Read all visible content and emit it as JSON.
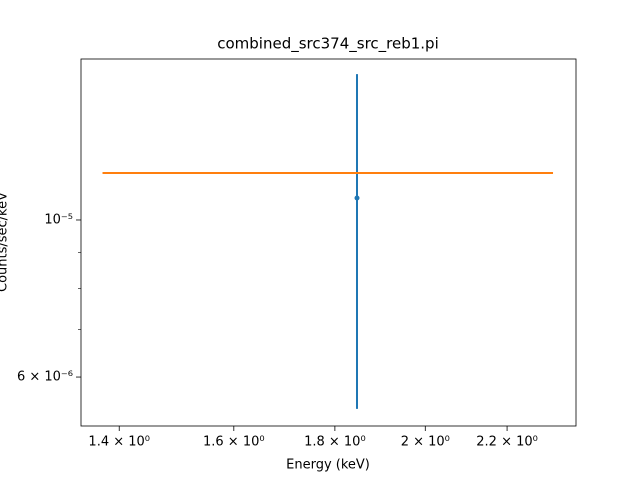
{
  "chart_data": {
    "type": "errorbar",
    "title": "combined_src374_src_reb1.pi",
    "xlabel": "Energy (keV)",
    "ylabel": "Counts/sec/keV",
    "xscale": "log",
    "yscale": "log",
    "xlim": [
      1.339,
      2.384
    ],
    "ylim": [
      5.117e-06,
      1.688e-05
    ],
    "xticks": [
      {
        "value": 1.4,
        "label": "1.4 × 10⁰"
      },
      {
        "value": 1.6,
        "label": "1.6 × 10⁰"
      },
      {
        "value": 1.8,
        "label": "1.8 × 10⁰"
      },
      {
        "value": 2.0,
        "label": "2 × 10⁰"
      },
      {
        "value": 2.2,
        "label": "2.2 × 10⁰"
      }
    ],
    "yticks": [
      {
        "value": 1e-05,
        "label": "10⁻⁵"
      },
      {
        "value": 6e-06,
        "label": "6 × 10⁻⁶"
      }
    ],
    "yminor_ticks": [
      7e-06,
      8e-06,
      9e-06
    ],
    "series": [
      {
        "style": "errorbar",
        "color": "#1f77b4",
        "x": [
          1.847
        ],
        "values": [
          1.074e-05
        ],
        "yerr": [
          5.33e-06
        ]
      },
      {
        "style": "line",
        "color": "#ff7f0e",
        "x": [
          1.373,
          2.321
        ],
        "values": [
          1.165e-05,
          1.165e-05
        ]
      }
    ]
  }
}
